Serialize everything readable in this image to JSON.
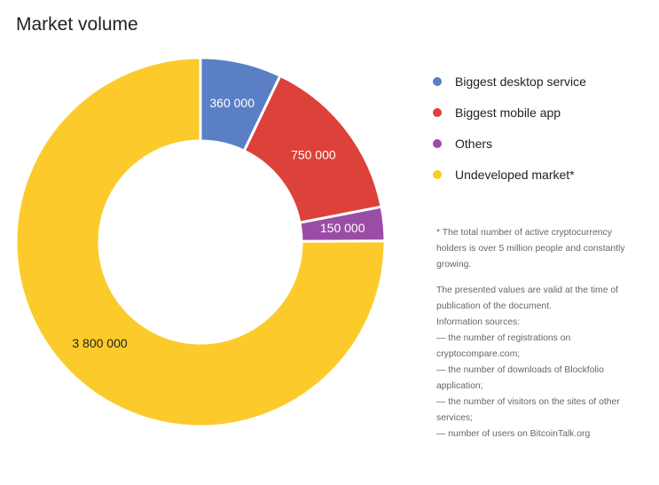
{
  "chart_data": {
    "type": "pie",
    "title": "Market volume",
    "categories": [
      "Biggest desktop service",
      "Biggest mobile app",
      "Others",
      "Undeveloped market*"
    ],
    "values": [
      360000,
      750000,
      150000,
      3800000
    ],
    "value_labels": [
      "360 000",
      "750 000",
      "150 000",
      "3 800 000"
    ],
    "colors": [
      "#5b7fc4",
      "#dc4239",
      "#9a4da4",
      "#fccb2b"
    ],
    "label_colors": [
      "#ffffff",
      "#ffffff",
      "#ffffff",
      "#222222"
    ],
    "hole": "donut",
    "legend_position": "right"
  },
  "legend_labels": [
    "Biggest desktop service",
    "Biggest mobile app",
    "Others",
    "Undeveloped market*"
  ],
  "footnote": {
    "note": "* The total number of active cryptocurrency holders is over 5 million people and constantly growing.",
    "validity": "The presented values are valid at the time of publication of the document.",
    "sources_title": "Information sources:",
    "sources": [
      "— the number of registrations on cryptocompare.com;",
      "— the number of downloads of Blockfolio application;",
      "— the number of visitors on the sites of other services;",
      "— number of users on BitcoinTalk.org"
    ]
  }
}
